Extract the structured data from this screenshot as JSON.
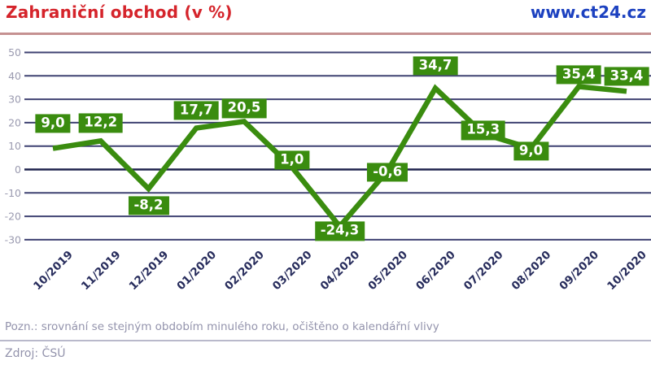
{
  "header": {
    "title": "Zahraniční obchod (v %)",
    "website": "www.ct24.cz"
  },
  "footer": {
    "note": "Pozn.: srovnání se stejným obdobím minulého roku, očištěno o kalendářní vlivy",
    "source": "Zdroj: ČSÚ"
  },
  "colors": {
    "title-red": "#d5242b",
    "link-blue": "#1c41c0",
    "green": "#3a8c0f",
    "grid": "#3f4272",
    "grid-zero": "#1f234d",
    "ytick": "#9b9bb0",
    "xlabel": "#272c5c",
    "muted": "#9393ac",
    "header-rule": "#c59191",
    "footer-rule": "#b9b9cb"
  },
  "chart_data": {
    "type": "line",
    "title": "Zahraniční obchod (v %)",
    "categories": [
      "10/2019",
      "11/2019",
      "12/2019",
      "01/2020",
      "02/2020",
      "03/2020",
      "04/2020",
      "05/2020",
      "06/2020",
      "07/2020",
      "08/2020",
      "09/2020",
      "10/2020"
    ],
    "values": [
      9.0,
      12.2,
      -8.2,
      17.7,
      20.5,
      1.0,
      -24.3,
      -0.6,
      34.7,
      15.3,
      9.0,
      35.4,
      33.4
    ],
    "point_labels": [
      "9,0",
      "12,2",
      "-8,2",
      "17,7",
      "20,5",
      "1,0",
      "-24,3",
      "-0,6",
      "34,7",
      "15,3",
      "9,0",
      "35,4",
      "33,4"
    ],
    "ylabel": "",
    "xlabel": "",
    "yticks": [
      50,
      40,
      30,
      20,
      10,
      0,
      -10,
      -20,
      -30
    ],
    "ylim": [
      -30,
      50
    ],
    "grid": true,
    "legend": false,
    "line_width": 6.5,
    "label_offsets_y": [
      -31,
      -22,
      21,
      -22,
      -16,
      -9,
      6,
      2,
      -28,
      -4,
      3,
      -15,
      -18
    ]
  }
}
